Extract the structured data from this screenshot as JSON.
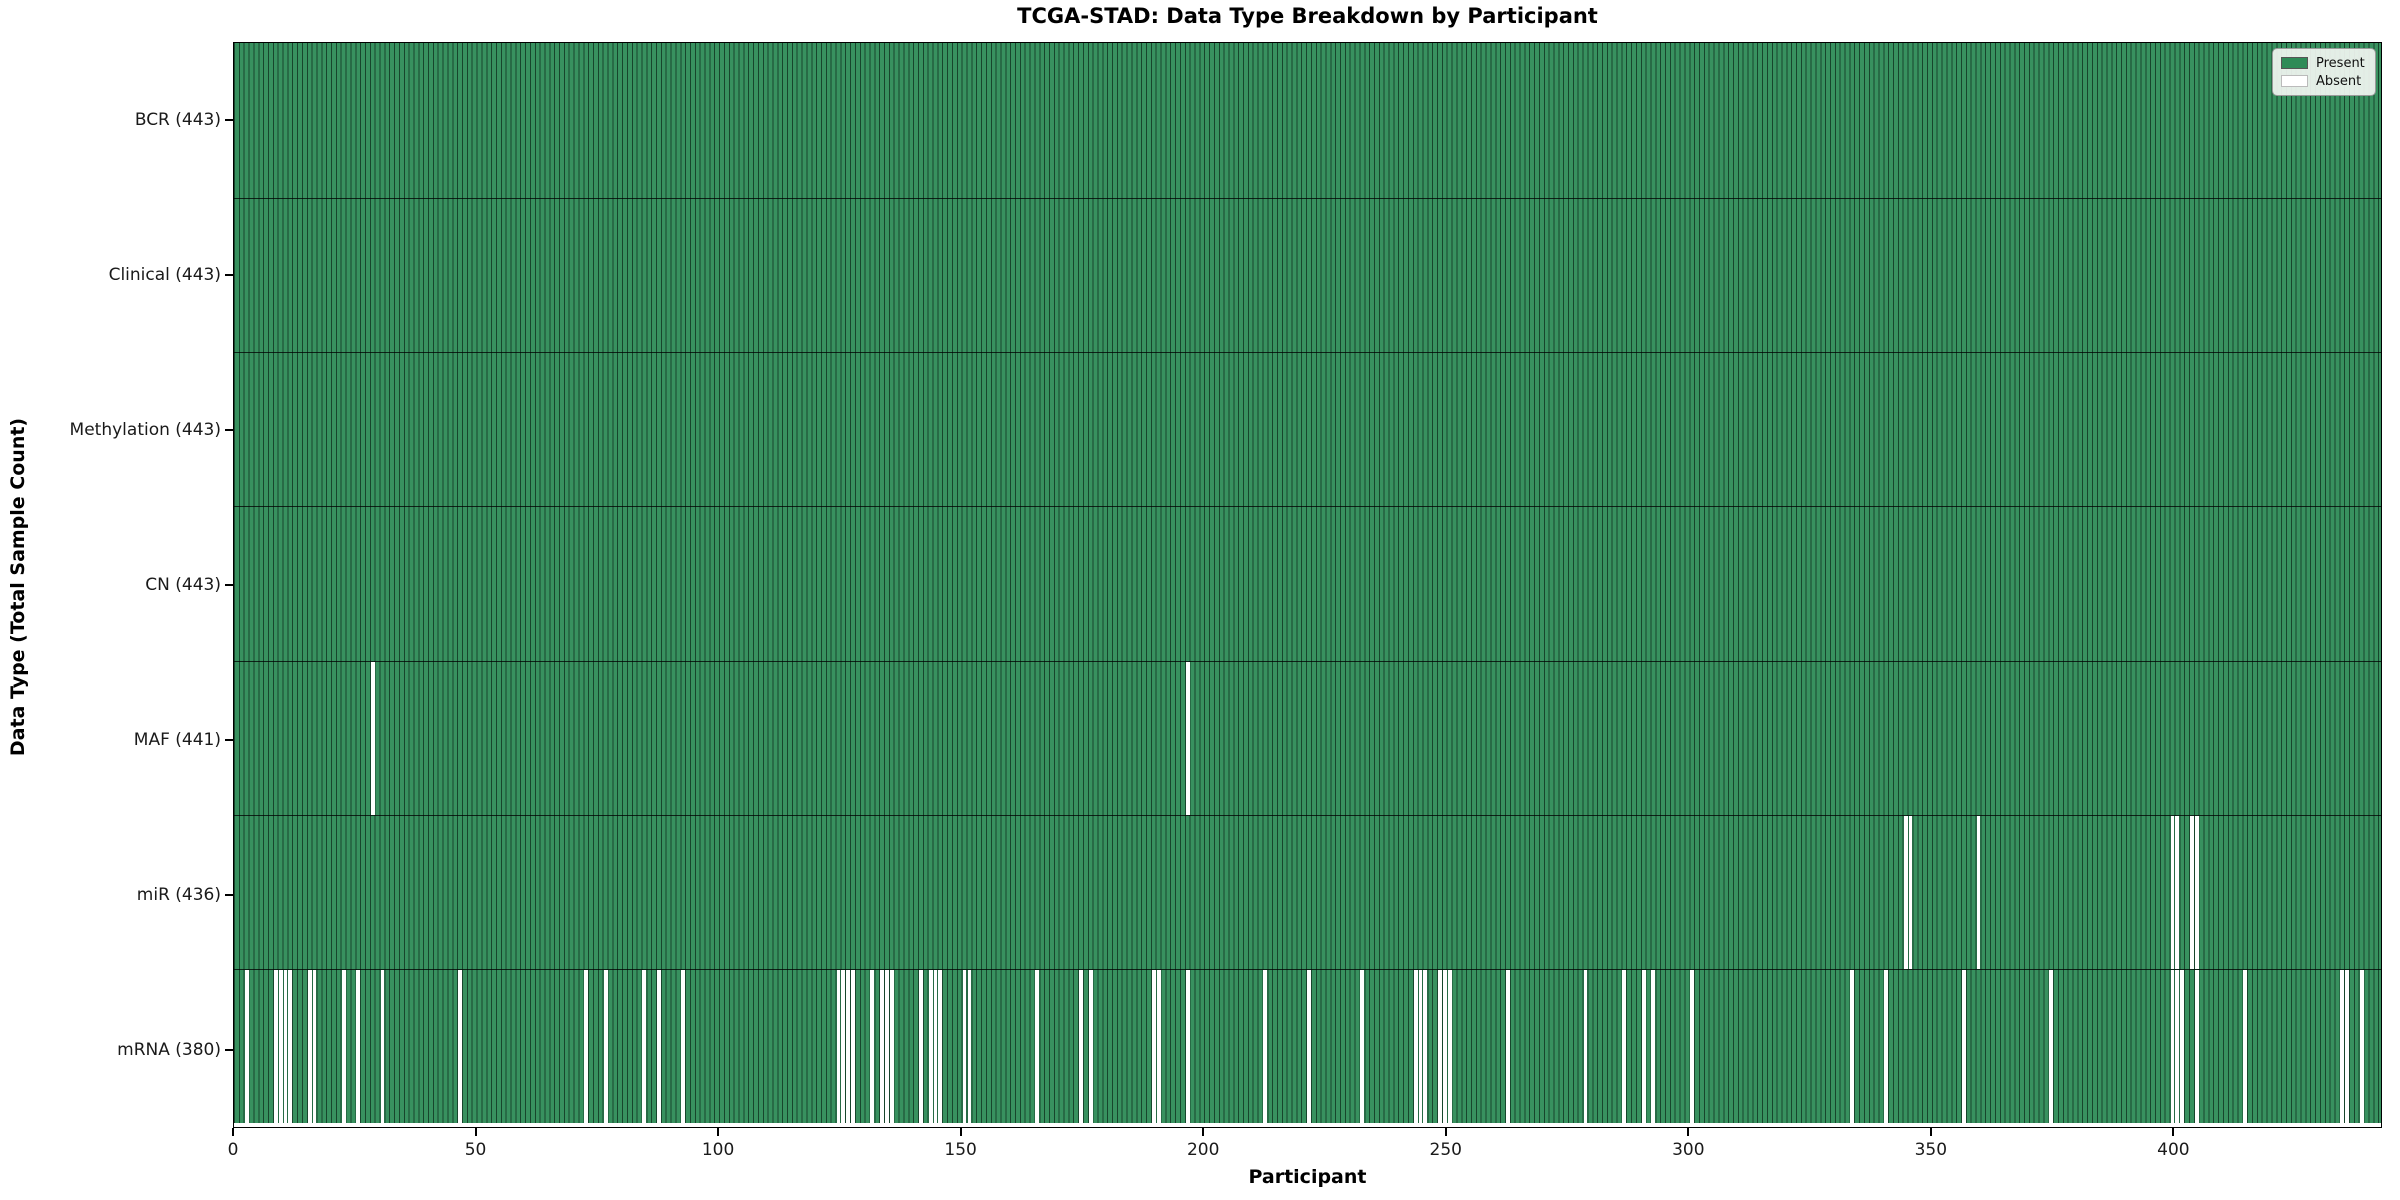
{
  "title": "TCGA-STAD: Data Type Breakdown by Participant",
  "x_axis": {
    "label": "Participant",
    "ticks": [
      0,
      50,
      100,
      150,
      200,
      250,
      300,
      350,
      400
    ]
  },
  "y_axis": {
    "label": "Data Type (Total Sample Count)"
  },
  "legend": {
    "present_label": "Present",
    "absent_label": "Absent"
  },
  "chart_data": {
    "type": "heatmap",
    "title": "TCGA-STAD: Data Type Breakdown by Participant",
    "xlabel": "Participant",
    "ylabel": "Data Type (Total Sample Count)",
    "x_range": [
      0,
      443
    ],
    "n_participants": 443,
    "x_ticks": [
      0,
      50,
      100,
      150,
      200,
      250,
      300,
      350,
      400
    ],
    "grid": false,
    "legend_position": "upper right",
    "colors": {
      "present": "#2e8b57",
      "present_fill": "#38915f",
      "bar_edge": "#17452c",
      "absent": "#ffffff"
    },
    "categories": [
      "BCR (443)",
      "Clinical (443)",
      "Methylation (443)",
      "CN (443)",
      "MAF (441)",
      "miR (436)",
      "mRNA (380)"
    ],
    "series": [
      {
        "name": "BCR",
        "label": "BCR (443)",
        "total": 443,
        "absent_participants": []
      },
      {
        "name": "Clinical",
        "label": "Clinical (443)",
        "total": 443,
        "absent_participants": []
      },
      {
        "name": "Methylation",
        "label": "Methylation (443)",
        "total": 443,
        "absent_participants": []
      },
      {
        "name": "CN",
        "label": "CN (443)",
        "total": 443,
        "absent_participants": []
      },
      {
        "name": "MAF",
        "label": "MAF (441)",
        "total": 441,
        "absent_participants": [
          28,
          196
        ]
      },
      {
        "name": "miR",
        "label": "miR (436)",
        "total": 436,
        "absent_participants": [
          344,
          345,
          359,
          399,
          400,
          403,
          404
        ]
      },
      {
        "name": "mRNA",
        "label": "mRNA (380)",
        "total": 380,
        "absent_participants": [
          2,
          8,
          9,
          10,
          11,
          15,
          16,
          22,
          25,
          30,
          46,
          72,
          76,
          84,
          87,
          92,
          124,
          125,
          126,
          127,
          131,
          133,
          134,
          135,
          141,
          143,
          144,
          145,
          150,
          151,
          165,
          174,
          176,
          189,
          190,
          196,
          212,
          221,
          232,
          243,
          244,
          245,
          248,
          249,
          250,
          262,
          278,
          286,
          290,
          292,
          300,
          333,
          340,
          356,
          374,
          399,
          400,
          401,
          404,
          414,
          434,
          435,
          438
        ]
      }
    ]
  }
}
